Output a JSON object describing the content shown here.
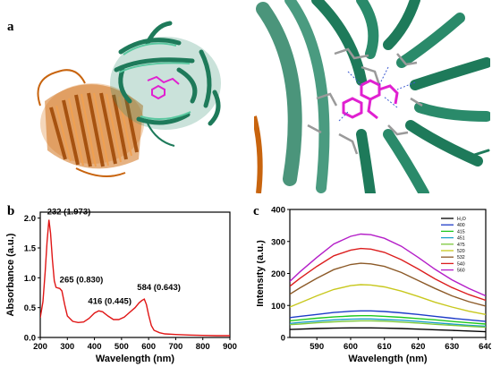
{
  "panels": {
    "a": "a",
    "b": "b",
    "c": "c"
  },
  "colors": {
    "beta_barrel": "#c8640e",
    "protein_green": "#2a8a6a",
    "ligand": "#e020d0",
    "absorbance": "#e01616"
  },
  "chart_data": [
    {
      "type": "line",
      "panel": "b",
      "xlabel": "Wavelength (nm)",
      "ylabel": "Absorbance (a.u.)",
      "xlim": [
        200,
        900
      ],
      "ylim": [
        0,
        2.1
      ],
      "xticks": [
        200,
        300,
        400,
        500,
        600,
        700,
        800,
        900
      ],
      "yticks": [
        0.0,
        0.5,
        1.0,
        1.5,
        2.0
      ],
      "grid": false,
      "series": [
        {
          "color": "#e01616",
          "x": [
            200,
            210,
            218,
            225,
            232,
            238,
            245,
            252,
            258,
            265,
            272,
            280,
            290,
            300,
            320,
            340,
            360,
            380,
            400,
            416,
            430,
            450,
            470,
            490,
            510,
            530,
            550,
            565,
            575,
            584,
            592,
            600,
            610,
            620,
            640,
            660,
            700,
            750,
            800,
            850,
            900
          ],
          "y": [
            0.33,
            0.6,
            1.1,
            1.6,
            1.973,
            1.75,
            1.3,
            0.95,
            0.84,
            0.83,
            0.82,
            0.78,
            0.55,
            0.36,
            0.27,
            0.25,
            0.26,
            0.32,
            0.41,
            0.445,
            0.43,
            0.36,
            0.3,
            0.3,
            0.34,
            0.42,
            0.5,
            0.58,
            0.62,
            0.643,
            0.55,
            0.38,
            0.2,
            0.12,
            0.08,
            0.06,
            0.05,
            0.04,
            0.035,
            0.03,
            0.03
          ]
        }
      ],
      "annotations": [
        {
          "x": 232,
          "y": 1.973,
          "text": "232 (1.973)"
        },
        {
          "x": 265,
          "y": 0.83,
          "text": "265 (0.830)"
        },
        {
          "x": 416,
          "y": 0.445,
          "text": "416 (0.445)"
        },
        {
          "x": 584,
          "y": 0.643,
          "text": "584 (0.643)"
        }
      ]
    },
    {
      "type": "line",
      "panel": "c",
      "xlabel": "Wavelength (nm)",
      "ylabel": "Intensity (a.u.)",
      "xlim": [
        582,
        640
      ],
      "ylim": [
        0,
        400
      ],
      "xticks": [
        590,
        600,
        610,
        620,
        630,
        640
      ],
      "yticks": [
        0,
        100,
        200,
        300,
        400
      ],
      "grid": false,
      "legend": "top-right",
      "x": [
        582,
        585,
        590,
        595,
        600,
        603,
        606,
        610,
        615,
        620,
        625,
        630,
        635,
        640
      ],
      "series": [
        {
          "name": "H₂O",
          "color": "#000000",
          "peak": 30,
          "y": [
            25,
            26,
            28,
            29,
            30,
            30,
            30,
            29,
            28,
            26,
            24,
            22,
            20,
            18
          ]
        },
        {
          "name": "400",
          "color": "#1e3cc8",
          "peak": 83,
          "y": [
            62,
            66,
            72,
            78,
            82,
            83,
            83,
            81,
            77,
            72,
            66,
            60,
            55,
            50
          ]
        },
        {
          "name": "415",
          "color": "#1ec81e",
          "peak": 68,
          "y": [
            52,
            55,
            60,
            64,
            67,
            68,
            68,
            66,
            63,
            59,
            55,
            50,
            46,
            42
          ]
        },
        {
          "name": "451",
          "color": "#1ea0c8",
          "peak": 58,
          "y": [
            44,
            47,
            51,
            55,
            57,
            58,
            58,
            56,
            54,
            50,
            46,
            42,
            38,
            35
          ]
        },
        {
          "name": "475",
          "color": "#7dc83c",
          "peak": 52,
          "y": [
            40,
            42,
            46,
            49,
            51,
            52,
            52,
            51,
            48,
            45,
            41,
            38,
            35,
            32
          ]
        },
        {
          "name": "520",
          "color": "#c8c81e",
          "peak": 165,
          "y": [
            95,
            108,
            130,
            150,
            162,
            165,
            164,
            158,
            145,
            128,
            110,
            95,
            82,
            72
          ]
        },
        {
          "name": "532",
          "color": "#8c5a28",
          "peak": 232,
          "y": [
            135,
            155,
            185,
            212,
            228,
            232,
            230,
            222,
            203,
            178,
            153,
            130,
            112,
            98
          ]
        },
        {
          "name": "540",
          "color": "#dc1e1e",
          "peak": 278,
          "y": [
            160,
            185,
            222,
            255,
            273,
            278,
            276,
            266,
            243,
            214,
            183,
            156,
            134,
            116
          ]
        },
        {
          "name": "560",
          "color": "#b41ec8",
          "peak": 323,
          "y": [
            175,
            205,
            250,
            292,
            316,
            323,
            321,
            310,
            285,
            250,
            213,
            180,
            153,
            130
          ]
        }
      ]
    }
  ]
}
